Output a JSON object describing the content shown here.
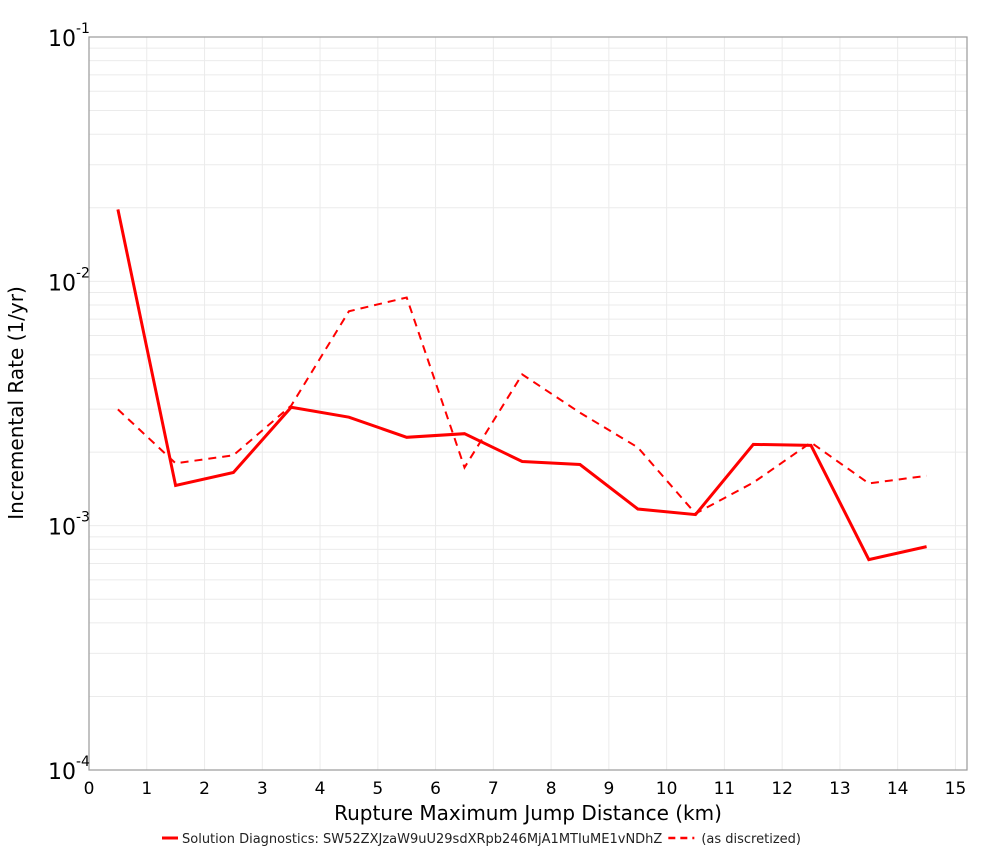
{
  "chart_data": {
    "type": "line",
    "title": "",
    "xlabel": "Rupture Maximum Jump Distance (km)",
    "ylabel": "Incremental Rate (1/yr)",
    "xlim": [
      0,
      15.2
    ],
    "ylim": [
      0.0001,
      0.1
    ],
    "yscale": "log",
    "x_ticks": [
      0,
      1,
      2,
      3,
      4,
      5,
      6,
      7,
      8,
      9,
      10,
      11,
      12,
      13,
      14,
      15
    ],
    "y_ticks": [
      {
        "value": 0.1,
        "base": "10",
        "exp": "-1"
      },
      {
        "value": 0.01,
        "base": "10",
        "exp": "-2"
      },
      {
        "value": 0.001,
        "base": "10",
        "exp": "-3"
      },
      {
        "value": 0.0001,
        "base": "10",
        "exp": "-4"
      }
    ],
    "grid": true,
    "legend_position": "bottom",
    "x": [
      0.5,
      1.5,
      2.5,
      3.5,
      4.5,
      5.5,
      6.5,
      7.5,
      8.5,
      9.5,
      10.5,
      11.5,
      12.5,
      13.5,
      14.5
    ],
    "series": [
      {
        "name": "Solution Diagnostics: SW52ZXJzaW9uU29sdXRpb246MjA1MTIuME1vNDhZ",
        "style": "solid",
        "color": "#ff0000",
        "values": [
          0.0197,
          0.00146,
          0.00165,
          0.00305,
          0.00278,
          0.0023,
          0.00238,
          0.00183,
          0.00178,
          0.00117,
          0.00111,
          0.00215,
          0.00213,
          0.000726,
          0.000821
        ]
      },
      {
        "name": "(as discretized)",
        "style": "dashed",
        "color": "#ff0000",
        "values": [
          0.00299,
          0.0018,
          0.00194,
          0.0031,
          0.00754,
          0.00859,
          0.00173,
          0.00416,
          0.0029,
          0.00209,
          0.00112,
          0.0015,
          0.00219,
          0.00149,
          0.0016
        ]
      }
    ]
  },
  "legend": {
    "items": [
      {
        "label": "Solution Diagnostics: SW52ZXJzaW9uU29sdXRpb246MjA1MTIuME1vNDhZ"
      },
      {
        "label": "(as discretized)"
      }
    ]
  }
}
